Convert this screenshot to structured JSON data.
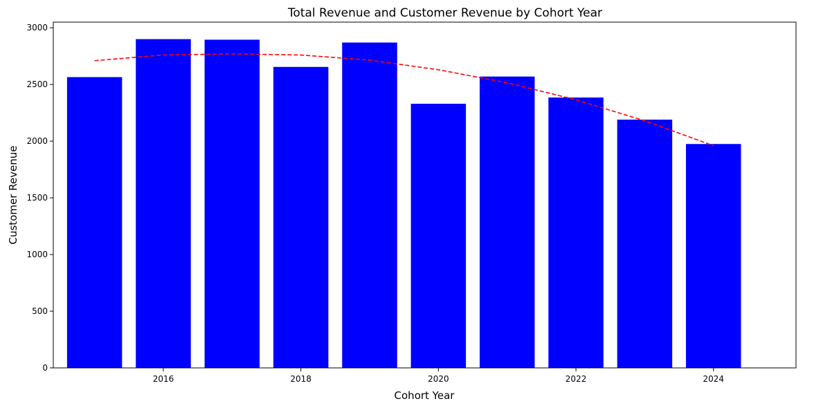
{
  "chart_data": {
    "type": "bar",
    "title": "Total Revenue and Customer Revenue by Cohort Year",
    "xlabel": "Cohort Year",
    "ylabel": "Customer Revenue",
    "x": [
      2015,
      2016,
      2017,
      2018,
      2019,
      2020,
      2021,
      2022,
      2023,
      2024
    ],
    "xticks": [
      "2016",
      "2018",
      "2020",
      "2022",
      "2024"
    ],
    "xtick_values": [
      2016,
      2018,
      2020,
      2022,
      2024
    ],
    "xlim": [
      2014.4,
      2025.2
    ],
    "yticks": [
      "0",
      "500",
      "1000",
      "1500",
      "2000",
      "2500",
      "3000"
    ],
    "ytick_values": [
      0,
      500,
      1000,
      1500,
      2000,
      2500,
      3000
    ],
    "ylim": [
      0,
      3050
    ],
    "series": [
      {
        "type": "bar",
        "color": "#0000ff",
        "values": [
          2565,
          2900,
          2895,
          2655,
          2870,
          2330,
          2570,
          2385,
          2190,
          1975
        ]
      },
      {
        "type": "line",
        "style": "dashed",
        "color": "#ff0000",
        "values": [
          2710,
          2760,
          2770,
          2760,
          2715,
          2630,
          2515,
          2365,
          2180,
          1960
        ]
      }
    ],
    "grid": false
  }
}
